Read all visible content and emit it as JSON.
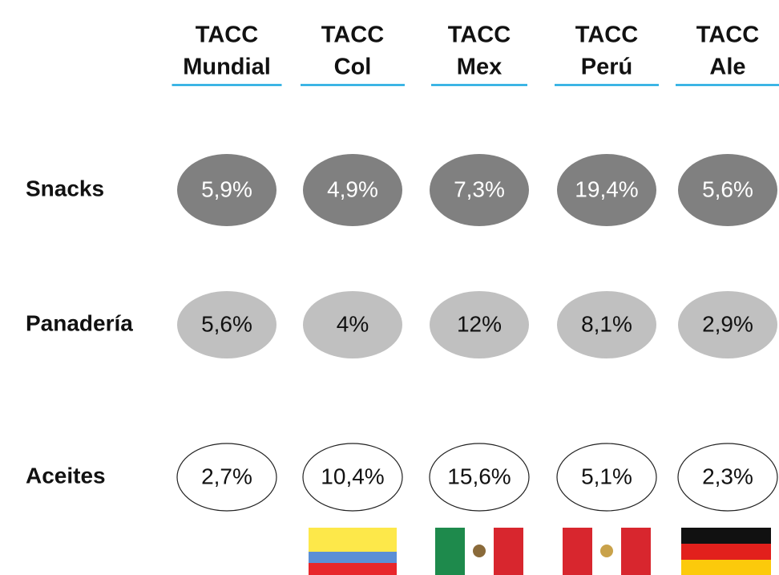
{
  "table": {
    "columns": [
      {
        "line1": "TACC",
        "line2": "Mundial"
      },
      {
        "line1": "TACC",
        "line2": "Col"
      },
      {
        "line1": "TACC",
        "line2": "Mex"
      },
      {
        "line1": "TACC",
        "line2": "Perú"
      },
      {
        "line1": "TACC",
        "line2": "Ale"
      }
    ],
    "rows": [
      {
        "label": "Snacks",
        "values": [
          "5,9%",
          "4,9%",
          "7,3%",
          "19,4%",
          "5,6%"
        ]
      },
      {
        "label": "Panadería",
        "values": [
          "5,6%",
          "4%",
          "12%",
          "8,1%",
          "2,9%"
        ]
      },
      {
        "label": "Aceites",
        "values": [
          "2,7%",
          "10,4%",
          "15,6%",
          "5,1%",
          "2,3%"
        ]
      }
    ]
  }
}
